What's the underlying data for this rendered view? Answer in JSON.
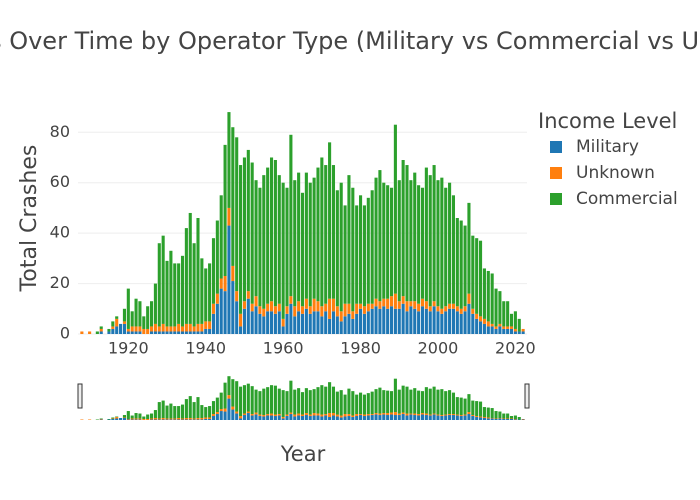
{
  "chart_data": {
    "type": "bar",
    "stacked": true,
    "title": "Aircraft Crashes Over Time by Operator Type (Military vs Commercial vs Unknown)",
    "x_label": "Year",
    "y_label": "Total Crashes",
    "legend_title": "Income Level",
    "legend": "right",
    "x": [
      1908,
      1909,
      1910,
      1911,
      1912,
      1913,
      1914,
      1915,
      1916,
      1917,
      1918,
      1919,
      1920,
      1921,
      1922,
      1923,
      1924,
      1925,
      1926,
      1927,
      1928,
      1929,
      1930,
      1931,
      1932,
      1933,
      1934,
      1935,
      1936,
      1937,
      1938,
      1939,
      1940,
      1941,
      1942,
      1943,
      1944,
      1945,
      1946,
      1947,
      1948,
      1949,
      1950,
      1951,
      1952,
      1953,
      1954,
      1955,
      1956,
      1957,
      1958,
      1959,
      1960,
      1961,
      1962,
      1963,
      1964,
      1965,
      1966,
      1967,
      1968,
      1969,
      1970,
      1971,
      1972,
      1973,
      1974,
      1975,
      1976,
      1977,
      1978,
      1979,
      1980,
      1981,
      1982,
      1983,
      1984,
      1985,
      1986,
      1987,
      1988,
      1989,
      1990,
      1991,
      1992,
      1993,
      1994,
      1995,
      1996,
      1997,
      1998,
      1999,
      2000,
      2001,
      2002,
      2003,
      2004,
      2005,
      2006,
      2007,
      2008,
      2009,
      2010,
      2011,
      2012,
      2013,
      2014,
      2015,
      2016,
      2017,
      2018,
      2019,
      2020,
      2021,
      2022
    ],
    "series": [
      {
        "name": "Military",
        "color": "#1f77b4",
        "values": [
          0,
          0,
          0,
          0,
          0,
          1,
          0,
          1,
          2,
          3,
          4,
          4,
          1,
          1,
          1,
          1,
          0,
          0,
          1,
          1,
          1,
          1,
          1,
          1,
          1,
          1,
          1,
          1,
          1,
          1,
          1,
          1,
          2,
          2,
          8,
          12,
          18,
          17,
          43,
          21,
          13,
          3,
          10,
          14,
          9,
          11,
          8,
          7,
          9,
          9,
          8,
          9,
          3,
          8,
          12,
          7,
          9,
          8,
          10,
          8,
          9,
          9,
          7,
          9,
          6,
          9,
          7,
          5,
          7,
          8,
          6,
          8,
          10,
          8,
          9,
          10,
          11,
          10,
          11,
          10,
          11,
          10,
          10,
          12,
          9,
          11,
          10,
          9,
          11,
          10,
          9,
          11,
          9,
          8,
          9,
          10,
          10,
          9,
          8,
          9,
          12,
          8,
          6,
          5,
          4,
          3,
          3,
          2,
          3,
          2,
          2,
          2,
          1,
          1,
          1
        ]
      },
      {
        "name": "Unknown",
        "color": "#ff7f0e",
        "values": [
          1,
          0,
          1,
          0,
          0,
          1,
          0,
          0,
          1,
          3,
          0,
          1,
          1,
          2,
          2,
          2,
          2,
          2,
          2,
          3,
          2,
          3,
          2,
          2,
          2,
          3,
          2,
          3,
          3,
          2,
          3,
          3,
          3,
          3,
          4,
          4,
          4,
          6,
          7,
          6,
          4,
          5,
          3,
          3,
          3,
          4,
          3,
          3,
          3,
          4,
          3,
          3,
          3,
          3,
          3,
          4,
          4,
          3,
          4,
          3,
          5,
          4,
          4,
          3,
          8,
          5,
          4,
          4,
          5,
          4,
          3,
          4,
          2,
          3,
          3,
          2,
          3,
          3,
          3,
          4,
          4,
          6,
          3,
          3,
          4,
          2,
          3,
          3,
          3,
          3,
          2,
          2,
          2,
          2,
          2,
          2,
          2,
          2,
          2,
          2,
          4,
          2,
          2,
          2,
          2,
          2,
          1,
          1,
          1,
          1,
          1,
          1,
          1,
          0,
          1
        ]
      },
      {
        "name": "Commercial",
        "color": "#2ca02c",
        "values": [
          0,
          0,
          0,
          0,
          1,
          1,
          0,
          1,
          2,
          1,
          0,
          5,
          16,
          6,
          11,
          10,
          5,
          9,
          10,
          16,
          33,
          35,
          26,
          30,
          25,
          24,
          28,
          38,
          44,
          33,
          42,
          26,
          21,
          23,
          26,
          29,
          33,
          52,
          38,
          55,
          61,
          59,
          57,
          56,
          56,
          46,
          47,
          53,
          54,
          57,
          58,
          51,
          54,
          47,
          64,
          50,
          51,
          45,
          50,
          49,
          48,
          53,
          59,
          55,
          62,
          53,
          46,
          51,
          39,
          51,
          49,
          39,
          43,
          40,
          42,
          45,
          48,
          52,
          46,
          45,
          43,
          67,
          48,
          54,
          54,
          48,
          51,
          47,
          44,
          53,
          52,
          54,
          50,
          52,
          47,
          48,
          43,
          35,
          35,
          32,
          36,
          29,
          30,
          30,
          20,
          20,
          20,
          15,
          13,
          10,
          10,
          5,
          7,
          5,
          0
        ]
      }
    ],
    "xlim": [
      1907,
      2023
    ],
    "xticks": [
      1920,
      1940,
      1960,
      1980,
      2000,
      2020
    ],
    "ylim": [
      0,
      92.4
    ],
    "yticks": [
      0,
      20,
      40,
      60,
      80
    ],
    "grid": true,
    "range_slider": true
  }
}
